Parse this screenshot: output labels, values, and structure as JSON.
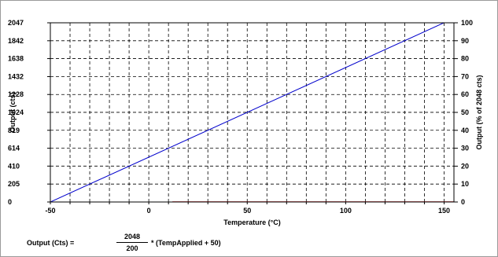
{
  "chart_data": {
    "type": "line",
    "xlabel": "Temperature (°C)",
    "ylabel": "Output (cts)",
    "y2label": "Output (% of 2048 cts)",
    "xlim": [
      -50,
      155
    ],
    "ylim": [
      0,
      2047
    ],
    "y2lim": [
      0,
      100
    ],
    "x_ticks": [
      -50,
      0,
      50,
      100,
      150
    ],
    "x_tick_labels": [
      "-50",
      "0",
      "50",
      "100",
      "150"
    ],
    "x_minor_step": 10,
    "y_ticks": [
      0,
      205,
      410,
      614,
      819,
      1024,
      1228,
      1432,
      1638,
      1842,
      2047
    ],
    "y_tick_labels": [
      "0",
      "205",
      "410",
      "614",
      "819",
      "1024",
      "1228",
      "1432",
      "1638",
      "1842",
      "2047"
    ],
    "y2_ticks": [
      0,
      10,
      20,
      30,
      40,
      50,
      60,
      70,
      80,
      90,
      100
    ],
    "y2_tick_labels": [
      "0",
      "10",
      "20",
      "30",
      "40",
      "50",
      "60",
      "70",
      "80",
      "90",
      "100"
    ],
    "grid": true,
    "grid_style": "dashed",
    "series": [
      {
        "color": "#0000cc",
        "x": [
          -50,
          155
        ],
        "y": [
          0,
          2099.2
        ]
      },
      {
        "color": "#cc0000",
        "x": [
          12,
          155
        ],
        "y": [
          0,
          0
        ]
      }
    ]
  },
  "formula": {
    "lhs": "Output (Cts) =",
    "numerator": "2048",
    "denominator": "200",
    "rhs": "* (TempApplied + 50)"
  }
}
